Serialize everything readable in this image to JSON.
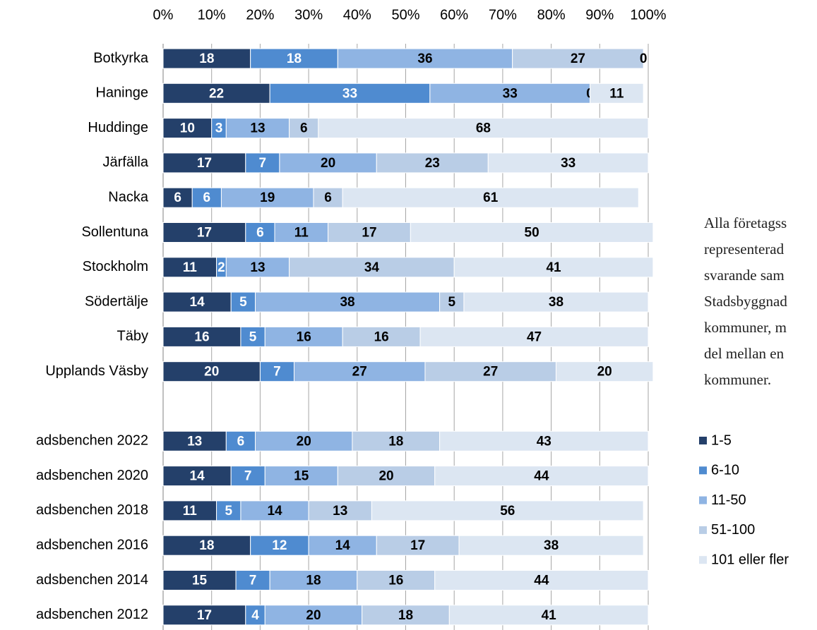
{
  "chart_data": {
    "type": "stacked_barh",
    "categories": [
      "Botkyrka",
      "Haninge",
      "Huddinge",
      "Järfälla",
      "Nacka",
      "Sollentuna",
      "Stockholm",
      "Södertälje",
      "Täby",
      "Upplands Väsby",
      null,
      "adsbenchen 2022",
      "adsbenchen 2020",
      "adsbenchen 2018",
      "adsbenchen 2016",
      "adsbenchen 2014",
      "adsbenchen 2012"
    ],
    "series": [
      {
        "name": "1-5",
        "color": "#24406a",
        "values": [
          18,
          22,
          10,
          17,
          6,
          17,
          11,
          14,
          16,
          20,
          null,
          13,
          14,
          11,
          18,
          15,
          17
        ]
      },
      {
        "name": "6-10",
        "color": "#4f8bd0",
        "values": [
          18,
          33,
          3,
          7,
          6,
          6,
          2,
          5,
          5,
          7,
          null,
          6,
          7,
          5,
          12,
          7,
          4
        ]
      },
      {
        "name": "11-50",
        "color": "#8fb4e3",
        "values": [
          36,
          33,
          13,
          20,
          19,
          11,
          13,
          38,
          16,
          27,
          null,
          20,
          15,
          14,
          14,
          18,
          20
        ]
      },
      {
        "name": "51-100",
        "color": "#b9cde6",
        "values": [
          27,
          0,
          6,
          23,
          6,
          17,
          34,
          5,
          16,
          27,
          null,
          18,
          20,
          13,
          17,
          16,
          18
        ]
      },
      {
        "name": "101 eller fler",
        "color": "#dce6f2",
        "values": [
          0,
          11,
          68,
          33,
          61,
          50,
          41,
          38,
          47,
          20,
          null,
          43,
          44,
          56,
          38,
          44,
          41
        ]
      }
    ],
    "xlim": [
      0,
      100
    ],
    "xticks": [
      {
        "value": 0,
        "label": "0%"
      },
      {
        "value": 10,
        "label": "10%"
      },
      {
        "value": 20,
        "label": "20%"
      },
      {
        "value": 30,
        "label": "30%"
      },
      {
        "value": 40,
        "label": "40%"
      },
      {
        "value": 50,
        "label": "50%"
      },
      {
        "value": 60,
        "label": "60%"
      },
      {
        "value": 70,
        "label": "70%"
      },
      {
        "value": 80,
        "label": "80%"
      },
      {
        "value": 90,
        "label": "90%"
      },
      {
        "value": 100,
        "label": "100%"
      }
    ],
    "grid": true,
    "legend": "right",
    "annotation": [
      "Alla företagss",
      "representerad",
      "svarande sam",
      "Stadsbyggnad",
      "kommuner, m",
      "del mellan en",
      "kommuner."
    ]
  }
}
